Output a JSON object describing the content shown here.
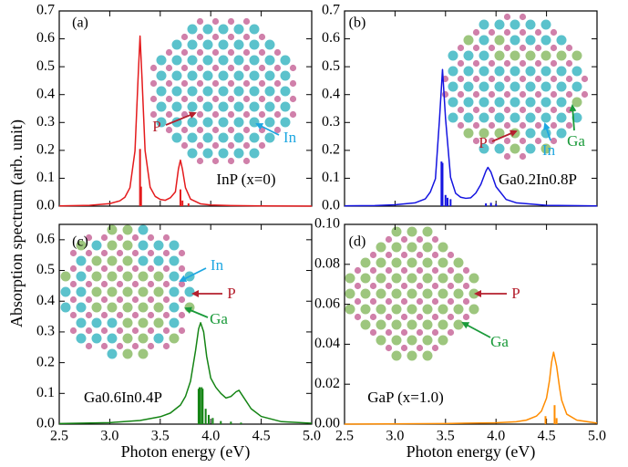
{
  "ylabel": "Absorption spectrum (arb. unit)",
  "chart_data": [
    {
      "type": "line",
      "panel_label": "(a)",
      "compound": "InP (x=0)",
      "atom_labels": [
        {
          "text": "P",
          "color": "#b5202e"
        },
        {
          "text": "In",
          "color": "#1ea7e1"
        }
      ],
      "cations": [
        "#3fb8c4"
      ],
      "xlim": [
        2.5,
        5.0
      ],
      "xticks": [
        2.5,
        {
          "value": 3,
          "label": "3.0"
        },
        3.5,
        {
          "value": 4,
          "label": "4.0"
        },
        4.5,
        {
          "value": 5,
          "label": "5.0"
        }
      ],
      "xticklabels": false,
      "ylim": [
        0,
        0.7
      ],
      "yticks": [
        {
          "value": 0,
          "label": "0.0"
        },
        0.1,
        0.2,
        0.3,
        0.4,
        0.5,
        0.6,
        0.7
      ],
      "series": [
        {
          "kind": "line",
          "color": "#e41a1c",
          "x": [
            2.5,
            2.8,
            3.0,
            3.1,
            3.15,
            3.2,
            3.25,
            3.28,
            3.3,
            3.32,
            3.35,
            3.4,
            3.45,
            3.5,
            3.55,
            3.6,
            3.65,
            3.68,
            3.7,
            3.72,
            3.75,
            3.8,
            3.9,
            4.0,
            4.2,
            4.5,
            5.0
          ],
          "values": [
            0.001,
            0.003,
            0.009,
            0.019,
            0.032,
            0.066,
            0.198,
            0.453,
            0.61,
            0.454,
            0.199,
            0.068,
            0.035,
            0.024,
            0.021,
            0.03,
            0.051,
            0.133,
            0.165,
            0.132,
            0.066,
            0.025,
            0.008,
            0.004,
            0.002,
            0.001,
            0.0
          ]
        },
        {
          "kind": "stick",
          "color": "#e41a1c",
          "x": [
            3.3,
            3.31,
            3.7,
            3.72,
            3.78
          ],
          "values": [
            0.205,
            0.07,
            0.06,
            0.02,
            0.01
          ]
        }
      ]
    },
    {
      "type": "line",
      "panel_label": "(b)",
      "compound": "Ga0.2In0.8P",
      "atom_labels": [
        {
          "text": "P",
          "color": "#b5202e"
        },
        {
          "text": "In",
          "color": "#1ea7e1"
        },
        {
          "text": "Ga",
          "color": "#1a9a3a"
        }
      ],
      "cations": [
        "#3fb8c4",
        "#3fb8c4",
        "#3fb8c4",
        "#3fb8c4",
        "#8dbd68"
      ],
      "xlim": [
        2.5,
        5.0
      ],
      "xticks": [
        2.5,
        {
          "value": 3,
          "label": "3.0"
        },
        3.5,
        {
          "value": 4,
          "label": "4.0"
        },
        4.5,
        {
          "value": 5,
          "label": "5.0"
        }
      ],
      "xticklabels": false,
      "ylim": [
        0,
        0.7
      ],
      "yticks": [
        {
          "value": 0,
          "label": "0.0"
        },
        0.1,
        0.2,
        0.3,
        0.4,
        0.5,
        0.6,
        0.7
      ],
      "series": [
        {
          "kind": "line",
          "color": "#1414e0",
          "x": [
            2.5,
            2.8,
            3.0,
            3.2,
            3.3,
            3.35,
            3.4,
            3.44,
            3.47,
            3.5,
            3.55,
            3.6,
            3.65,
            3.7,
            3.75,
            3.8,
            3.85,
            3.9,
            3.92,
            3.95,
            4.0,
            4.1,
            4.2,
            4.5,
            5.0
          ],
          "values": [
            0.001,
            0.002,
            0.005,
            0.012,
            0.026,
            0.051,
            0.098,
            0.31,
            0.49,
            0.315,
            0.103,
            0.046,
            0.032,
            0.028,
            0.03,
            0.047,
            0.078,
            0.126,
            0.139,
            0.122,
            0.07,
            0.024,
            0.012,
            0.003,
            0.001
          ]
        },
        {
          "kind": "stick",
          "color": "#1414e0",
          "x": [
            3.46,
            3.47,
            3.5,
            3.52,
            3.55,
            3.9,
            3.95,
            4.0
          ],
          "values": [
            0.16,
            0.155,
            0.04,
            0.03,
            0.025,
            0.01,
            0.012,
            0.008
          ]
        }
      ]
    },
    {
      "type": "line",
      "panel_label": "(c)",
      "compound": "Ga0.6In0.4P",
      "xlabel": "Photon energy (eV)",
      "atom_labels": [
        {
          "text": "In",
          "color": "#1ea7e1"
        },
        {
          "text": "P",
          "color": "#b5202e"
        },
        {
          "text": "Ga",
          "color": "#1a9a3a"
        }
      ],
      "cations": [
        "#8dbd68",
        "#3fb8c4",
        "#8dbd68",
        "#8dbd68",
        "#3fb8c4"
      ],
      "xlim": [
        2.5,
        5.0
      ],
      "xticks": [
        2.5,
        {
          "value": 3,
          "label": "3.0"
        },
        3.5,
        {
          "value": 4,
          "label": "4.0"
        },
        4.5,
        {
          "value": 5,
          "label": "5.0"
        }
      ],
      "xticklabels": true,
      "ylim": [
        0,
        0.65
      ],
      "yticks": [
        {
          "value": 0,
          "label": "0.0"
        },
        0.1,
        0.2,
        0.3,
        0.4,
        0.5,
        0.6
      ],
      "series": [
        {
          "kind": "line",
          "color": "#148414",
          "x": [
            2.5,
            3.0,
            3.3,
            3.5,
            3.6,
            3.7,
            3.75,
            3.8,
            3.85,
            3.88,
            3.9,
            3.93,
            3.96,
            4.0,
            4.05,
            4.1,
            4.15,
            4.2,
            4.25,
            4.28,
            4.32,
            4.4,
            4.5,
            4.7,
            5.0
          ],
          "values": [
            0.002,
            0.005,
            0.012,
            0.024,
            0.036,
            0.062,
            0.09,
            0.14,
            0.24,
            0.31,
            0.33,
            0.3,
            0.22,
            0.15,
            0.12,
            0.1,
            0.085,
            0.09,
            0.105,
            0.11,
            0.09,
            0.05,
            0.025,
            0.008,
            0.003
          ]
        },
        {
          "kind": "stick",
          "color": "#148414",
          "x": [
            3.88,
            3.89,
            3.91,
            3.92,
            3.95,
            3.98,
            4.02,
            4.1,
            4.2,
            4.3
          ],
          "values": [
            0.115,
            0.12,
            0.12,
            0.115,
            0.05,
            0.03,
            0.02,
            0.01,
            0.008,
            0.005
          ]
        }
      ]
    },
    {
      "type": "line",
      "panel_label": "(d)",
      "compound": "GaP (x=1.0)",
      "xlabel": "Photon energy (eV)",
      "atom_labels": [
        {
          "text": "P",
          "color": "#b5202e"
        },
        {
          "text": "Ga",
          "color": "#1a9a3a"
        }
      ],
      "cations": [
        "#8dbd68"
      ],
      "xlim": [
        2.5,
        5.0
      ],
      "xticks": [
        2.5,
        {
          "value": 3,
          "label": "3.0"
        },
        3.5,
        {
          "value": 4,
          "label": "4.0"
        },
        4.5,
        {
          "value": 5,
          "label": "5.0"
        }
      ],
      "xticklabels": true,
      "ylim": [
        0,
        0.1
      ],
      "yticks": [
        {
          "value": 0,
          "label": "0.00"
        },
        {
          "value": 0.02,
          "label": "0.02"
        },
        {
          "value": 0.04,
          "label": "0.04"
        },
        {
          "value": 0.06,
          "label": "0.06"
        },
        {
          "value": 0.08,
          "label": "0.08"
        },
        {
          "value": 0.1,
          "label": "0.10"
        }
      ],
      "series": [
        {
          "kind": "line",
          "color": "#ff8c00",
          "x": [
            2.5,
            3.5,
            4.0,
            4.2,
            4.3,
            4.4,
            4.45,
            4.5,
            4.53,
            4.55,
            4.57,
            4.6,
            4.63,
            4.65,
            4.7,
            4.8,
            5.0
          ],
          "values": [
            0.0,
            0.0003,
            0.0007,
            0.0012,
            0.002,
            0.004,
            0.0065,
            0.013,
            0.022,
            0.031,
            0.036,
            0.029,
            0.018,
            0.012,
            0.005,
            0.002,
            0.0005
          ]
        },
        {
          "kind": "stick",
          "color": "#ff8c00",
          "x": [
            4.49,
            4.58,
            4.6
          ],
          "values": [
            0.004,
            0.0095,
            0.003
          ]
        }
      ]
    }
  ]
}
